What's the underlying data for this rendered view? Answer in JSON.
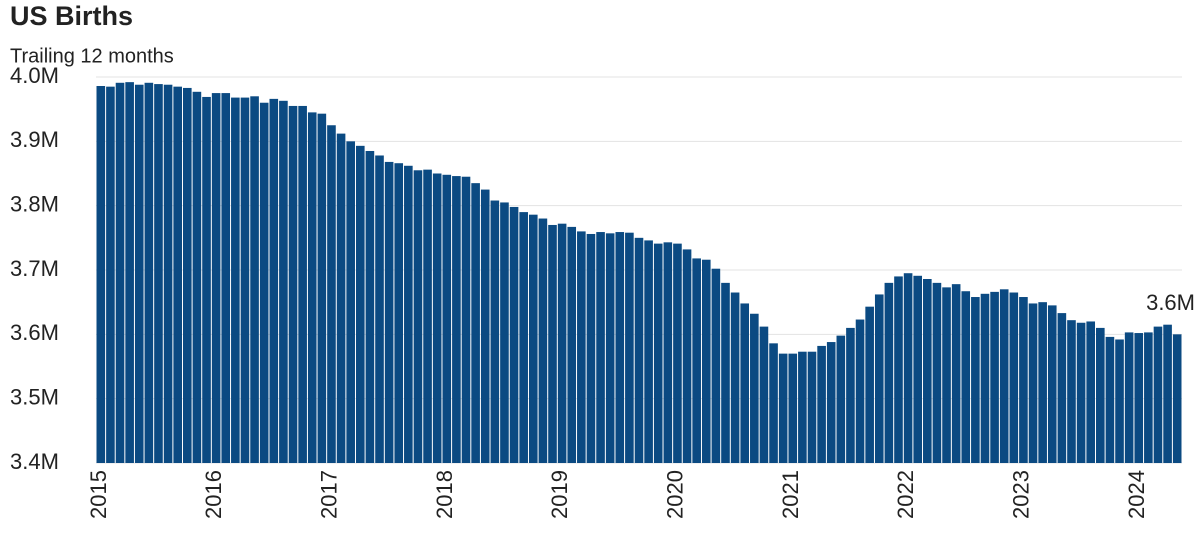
{
  "chart_data": {
    "type": "bar",
    "title": "US Births",
    "subtitle": "Trailing 12 months",
    "categories": [
      "2015",
      null,
      null,
      null,
      null,
      null,
      null,
      null,
      null,
      null,
      null,
      null,
      "2016",
      null,
      null,
      null,
      null,
      null,
      null,
      null,
      null,
      null,
      null,
      null,
      "2017",
      null,
      null,
      null,
      null,
      null,
      null,
      null,
      null,
      null,
      null,
      null,
      "2018",
      null,
      null,
      null,
      null,
      null,
      null,
      null,
      null,
      null,
      null,
      null,
      "2019",
      null,
      null,
      null,
      null,
      null,
      null,
      null,
      null,
      null,
      null,
      null,
      "2020",
      null,
      null,
      null,
      null,
      null,
      null,
      null,
      null,
      null,
      null,
      null,
      "2021",
      null,
      null,
      null,
      null,
      null,
      null,
      null,
      null,
      null,
      null,
      null,
      "2022",
      null,
      null,
      null,
      null,
      null,
      null,
      null,
      null,
      null,
      null,
      null,
      "2023",
      null,
      null,
      null,
      null,
      null,
      null,
      null,
      null,
      null,
      null,
      null,
      "2024",
      null,
      null,
      null,
      null
    ],
    "values": [
      3986000,
      3985000,
      3991000,
      3992000,
      3988000,
      3991000,
      3989000,
      3988000,
      3985000,
      3983000,
      3977000,
      3969000,
      3975000,
      3975000,
      3968000,
      3968000,
      3970000,
      3960000,
      3966000,
      3963000,
      3955000,
      3955000,
      3945000,
      3943000,
      3925000,
      3912000,
      3900000,
      3893000,
      3885000,
      3878000,
      3868000,
      3866000,
      3862000,
      3855000,
      3856000,
      3850000,
      3848000,
      3846000,
      3845000,
      3835000,
      3825000,
      3808000,
      3805000,
      3798000,
      3790000,
      3786000,
      3780000,
      3770000,
      3772000,
      3767000,
      3760000,
      3756000,
      3759000,
      3757000,
      3759000,
      3758000,
      3750000,
      3746000,
      3741000,
      3743000,
      3741000,
      3732000,
      3718000,
      3716000,
      3702000,
      3680000,
      3665000,
      3648000,
      3632000,
      3612000,
      3586000,
      3570000,
      3570000,
      3573000,
      3573000,
      3582000,
      3588000,
      3598000,
      3610000,
      3623000,
      3643000,
      3662000,
      3680000,
      3690000,
      3695000,
      3691000,
      3686000,
      3680000,
      3673000,
      3678000,
      3667000,
      3658000,
      3663000,
      3666000,
      3670000,
      3665000,
      3658000,
      3648000,
      3650000,
      3645000,
      3633000,
      3622000,
      3618000,
      3620000,
      3610000,
      3596000,
      3592000,
      3603000,
      3602000,
      3603000,
      3612000,
      3615000,
      3600000
    ],
    "value_labels": [
      null,
      null,
      null,
      null,
      null,
      null,
      null,
      null,
      null,
      null,
      null,
      null,
      null,
      null,
      null,
      null,
      null,
      null,
      null,
      null,
      null,
      null,
      null,
      null,
      null,
      null,
      null,
      null,
      null,
      null,
      null,
      null,
      null,
      null,
      null,
      null,
      null,
      null,
      null,
      null,
      null,
      null,
      null,
      null,
      null,
      null,
      null,
      null,
      null,
      null,
      null,
      null,
      null,
      null,
      null,
      null,
      null,
      null,
      null,
      null,
      null,
      null,
      null,
      null,
      null,
      null,
      null,
      null,
      null,
      null,
      null,
      null,
      null,
      null,
      null,
      null,
      null,
      null,
      null,
      null,
      null,
      null,
      null,
      null,
      null,
      null,
      null,
      null,
      null,
      null,
      null,
      null,
      null,
      null,
      null,
      null,
      null,
      null,
      null,
      null,
      null,
      null,
      null,
      null,
      null,
      null,
      null,
      null,
      null,
      null,
      null,
      null,
      "3.6M"
    ],
    "color": "#0b4a82",
    "ylim": [
      3400000,
      4000000
    ],
    "yticks": [
      {
        "value": 3400000,
        "label": "3.4M"
      },
      {
        "value": 3500000,
        "label": "3.5M"
      },
      {
        "value": 3600000,
        "label": "3.6M"
      },
      {
        "value": 3700000,
        "label": "3.7M"
      },
      {
        "value": 3800000,
        "label": "3.8M"
      },
      {
        "value": 3900000,
        "label": "3.9M"
      },
      {
        "value": 4000000,
        "label": "4.0M"
      }
    ],
    "grid": true
  }
}
